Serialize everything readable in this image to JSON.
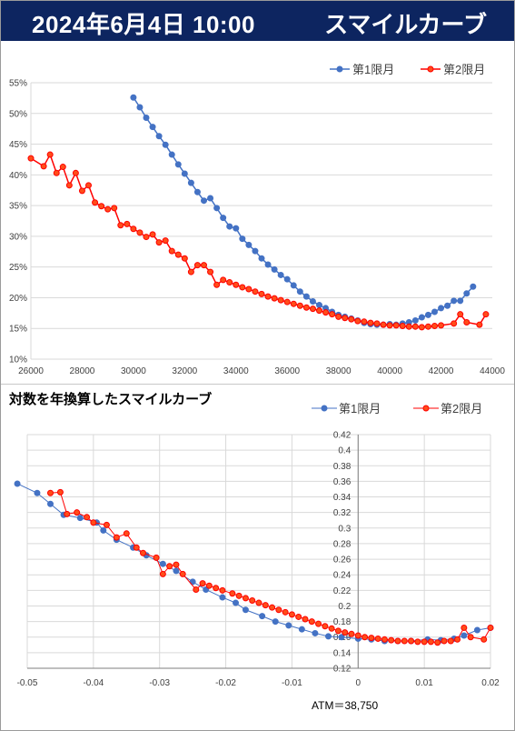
{
  "header": {
    "title": "2024年6月4日 10:00",
    "subtitle": "スマイルカーブ",
    "background": "#0d2560"
  },
  "colors": {
    "series1": "#4472c4",
    "series2": "#ff0000",
    "series2_marker_fill": "#ff4d1a",
    "grid": "#d9d9d9"
  },
  "chart_data": [
    {
      "type": "line",
      "title": "",
      "xlabel": "",
      "ylabel": "",
      "xlim": [
        26000,
        44000
      ],
      "ylim": [
        10,
        55
      ],
      "x_ticks": [
        "26000",
        "28000",
        "30000",
        "32000",
        "34000",
        "36000",
        "38000",
        "40000",
        "42000",
        "44000"
      ],
      "y_ticks": [
        "10%",
        "15%",
        "20%",
        "25%",
        "30%",
        "35%",
        "40%",
        "45%",
        "50%",
        "55%"
      ],
      "grid": "horizontal",
      "legend": "top-right",
      "series": [
        {
          "name": "第1限月",
          "color": "#4472c4",
          "points": [
            [
              30000,
              52.6
            ],
            [
              30250,
              51.0
            ],
            [
              30500,
              49.3
            ],
            [
              30750,
              47.8
            ],
            [
              31000,
              46.3
            ],
            [
              31250,
              44.9
            ],
            [
              31500,
              43.3
            ],
            [
              31750,
              41.7
            ],
            [
              32000,
              40.2
            ],
            [
              32250,
              38.7
            ],
            [
              32500,
              37.2
            ],
            [
              32750,
              35.8
            ],
            [
              33000,
              36.2
            ],
            [
              33250,
              34.6
            ],
            [
              33500,
              33.0
            ],
            [
              33750,
              31.6
            ],
            [
              34000,
              31.3
            ],
            [
              34250,
              29.6
            ],
            [
              34500,
              28.6
            ],
            [
              34750,
              27.6
            ],
            [
              35000,
              26.4
            ],
            [
              35250,
              25.4
            ],
            [
              35500,
              24.6
            ],
            [
              35750,
              23.7
            ],
            [
              36000,
              23.0
            ],
            [
              36250,
              22.0
            ],
            [
              36500,
              21.0
            ],
            [
              36750,
              20.2
            ],
            [
              37000,
              19.4
            ],
            [
              37250,
              18.8
            ],
            [
              37500,
              18.3
            ],
            [
              37750,
              17.7
            ],
            [
              38000,
              17.2
            ],
            [
              38250,
              16.9
            ],
            [
              38500,
              16.6
            ],
            [
              38750,
              16.3
            ],
            [
              39000,
              15.9
            ],
            [
              39250,
              15.7
            ],
            [
              39500,
              15.6
            ],
            [
              39750,
              15.6
            ],
            [
              40000,
              15.7
            ],
            [
              40250,
              15.6
            ],
            [
              40500,
              15.8
            ],
            [
              40750,
              16.0
            ],
            [
              41000,
              16.3
            ],
            [
              41250,
              16.8
            ],
            [
              41500,
              17.2
            ],
            [
              41750,
              17.7
            ],
            [
              42000,
              18.3
            ],
            [
              42250,
              18.7
            ],
            [
              42500,
              19.5
            ],
            [
              42750,
              19.5
            ],
            [
              43000,
              20.7
            ],
            [
              43250,
              21.8
            ]
          ]
        },
        {
          "name": "第2限月",
          "color": "#ff0000",
          "points": [
            [
              26000,
              42.7
            ],
            [
              26500,
              41.4
            ],
            [
              26750,
              43.3
            ],
            [
              27000,
              40.3
            ],
            [
              27250,
              41.3
            ],
            [
              27500,
              38.3
            ],
            [
              27750,
              40.3
            ],
            [
              28000,
              37.4
            ],
            [
              28250,
              38.3
            ],
            [
              28500,
              35.5
            ],
            [
              28750,
              34.9
            ],
            [
              29000,
              34.4
            ],
            [
              29250,
              34.6
            ],
            [
              29500,
              31.8
            ],
            [
              29750,
              32.0
            ],
            [
              30000,
              31.2
            ],
            [
              30250,
              30.6
            ],
            [
              30500,
              29.9
            ],
            [
              30750,
              30.3
            ],
            [
              31000,
              29.0
            ],
            [
              31250,
              29.3
            ],
            [
              31500,
              27.6
            ],
            [
              31750,
              27.0
            ],
            [
              32000,
              26.4
            ],
            [
              32250,
              24.2
            ],
            [
              32500,
              25.3
            ],
            [
              32750,
              25.3
            ],
            [
              33000,
              24.2
            ],
            [
              33250,
              22.1
            ],
            [
              33500,
              22.9
            ],
            [
              33750,
              22.5
            ],
            [
              34000,
              22.1
            ],
            [
              34250,
              21.7
            ],
            [
              34500,
              21.4
            ],
            [
              34750,
              21.0
            ],
            [
              35000,
              20.6
            ],
            [
              35250,
              20.2
            ],
            [
              35500,
              19.9
            ],
            [
              35750,
              19.6
            ],
            [
              36000,
              19.3
            ],
            [
              36250,
              19.0
            ],
            [
              36500,
              18.7
            ],
            [
              36750,
              18.4
            ],
            [
              37000,
              18.2
            ],
            [
              37250,
              17.9
            ],
            [
              37500,
              17.6
            ],
            [
              37750,
              17.3
            ],
            [
              38000,
              16.9
            ],
            [
              38250,
              16.7
            ],
            [
              38500,
              16.5
            ],
            [
              38750,
              16.2
            ],
            [
              39000,
              16.1
            ],
            [
              39250,
              15.9
            ],
            [
              39500,
              15.8
            ],
            [
              39750,
              15.6
            ],
            [
              40000,
              15.5
            ],
            [
              40250,
              15.5
            ],
            [
              40500,
              15.4
            ],
            [
              40750,
              15.3
            ],
            [
              41000,
              15.3
            ],
            [
              41250,
              15.2
            ],
            [
              41500,
              15.3
            ],
            [
              41750,
              15.4
            ],
            [
              42000,
              15.5
            ],
            [
              42500,
              15.8
            ],
            [
              42750,
              17.3
            ],
            [
              43000,
              16.0
            ],
            [
              43500,
              15.6
            ],
            [
              43750,
              17.3
            ]
          ]
        }
      ]
    },
    {
      "type": "line",
      "title": "対数を年換算したスマイルカーブ",
      "xlabel": "",
      "ylabel": "",
      "xlim": [
        -0.05,
        0.02
      ],
      "ylim": [
        0.12,
        0.42
      ],
      "x_ticks": [
        "-0.05",
        "-0.04",
        "-0.03",
        "-0.02",
        "-0.01",
        "0",
        "0.01",
        "0.02"
      ],
      "y_ticks": [
        "0.12",
        "0.14",
        "0.16",
        "0.18",
        "0.2",
        "0.22",
        "0.24",
        "0.26",
        "0.28",
        "0.3",
        "0.32",
        "0.34",
        "0.36",
        "0.38",
        "0.4",
        "0.42"
      ],
      "grid": "both",
      "legend": "top-right",
      "annotation": "ATM＝38,750",
      "series": [
        {
          "name": "第1限月",
          "color": "#4472c4",
          "points": [
            [
              -0.0515,
              0.357
            ],
            [
              -0.0485,
              0.345
            ],
            [
              -0.0465,
              0.331
            ],
            [
              -0.0445,
              0.317
            ],
            [
              -0.042,
              0.313
            ],
            [
              -0.0395,
              0.307
            ],
            [
              -0.0385,
              0.297
            ],
            [
              -0.0365,
              0.285
            ],
            [
              -0.034,
              0.275
            ],
            [
              -0.032,
              0.265
            ],
            [
              -0.0295,
              0.254
            ],
            [
              -0.0275,
              0.245
            ],
            [
              -0.025,
              0.231
            ],
            [
              -0.023,
              0.221
            ],
            [
              -0.0205,
              0.211
            ],
            [
              -0.0185,
              0.204
            ],
            [
              -0.017,
              0.195
            ],
            [
              -0.0145,
              0.187
            ],
            [
              -0.0125,
              0.18
            ],
            [
              -0.0105,
              0.175
            ],
            [
              -0.0085,
              0.17
            ],
            [
              -0.0065,
              0.165
            ],
            [
              -0.0045,
              0.161
            ],
            [
              -0.0025,
              0.16
            ],
            [
              0.0,
              0.158
            ],
            [
              0.002,
              0.157
            ],
            [
              0.004,
              0.155
            ],
            [
              0.006,
              0.155
            ],
            [
              0.008,
              0.155
            ],
            [
              0.0105,
              0.157
            ],
            [
              0.0125,
              0.156
            ],
            [
              0.0145,
              0.158
            ],
            [
              0.016,
              0.162
            ],
            [
              0.018,
              0.169
            ],
            [
              0.02,
              0.172
            ]
          ]
        },
        {
          "name": "第2限月",
          "color": "#ff0000",
          "points": [
            [
              -0.0465,
              0.345
            ],
            [
              -0.045,
              0.346
            ],
            [
              -0.044,
              0.318
            ],
            [
              -0.0425,
              0.32
            ],
            [
              -0.041,
              0.314
            ],
            [
              -0.04,
              0.307
            ],
            [
              -0.038,
              0.304
            ],
            [
              -0.0365,
              0.288
            ],
            [
              -0.035,
              0.293
            ],
            [
              -0.0335,
              0.275
            ],
            [
              -0.0325,
              0.268
            ],
            [
              -0.0305,
              0.262
            ],
            [
              -0.0295,
              0.241
            ],
            [
              -0.0285,
              0.251
            ],
            [
              -0.0275,
              0.253
            ],
            [
              -0.0265,
              0.241
            ],
            [
              -0.0245,
              0.221
            ],
            [
              -0.0235,
              0.229
            ],
            [
              -0.0225,
              0.226
            ],
            [
              -0.0215,
              0.223
            ],
            [
              -0.0205,
              0.22
            ],
            [
              -0.019,
              0.216
            ],
            [
              -0.018,
              0.213
            ],
            [
              -0.017,
              0.21
            ],
            [
              -0.016,
              0.207
            ],
            [
              -0.015,
              0.204
            ],
            [
              -0.014,
              0.201
            ],
            [
              -0.013,
              0.198
            ],
            [
              -0.012,
              0.195
            ],
            [
              -0.011,
              0.192
            ],
            [
              -0.01,
              0.189
            ],
            [
              -0.009,
              0.186
            ],
            [
              -0.008,
              0.183
            ],
            [
              -0.007,
              0.18
            ],
            [
              -0.006,
              0.177
            ],
            [
              -0.005,
              0.174
            ],
            [
              -0.004,
              0.171
            ],
            [
              -0.003,
              0.168
            ],
            [
              -0.002,
              0.166
            ],
            [
              -0.001,
              0.164
            ],
            [
              0.0,
              0.162
            ],
            [
              0.001,
              0.16
            ],
            [
              0.002,
              0.159
            ],
            [
              0.003,
              0.158
            ],
            [
              0.004,
              0.157
            ],
            [
              0.005,
              0.156
            ],
            [
              0.006,
              0.155
            ],
            [
              0.007,
              0.155
            ],
            [
              0.008,
              0.155
            ],
            [
              0.009,
              0.154
            ],
            [
              0.01,
              0.154
            ],
            [
              0.011,
              0.154
            ],
            [
              0.012,
              0.153
            ],
            [
              0.013,
              0.155
            ],
            [
              0.014,
              0.155
            ],
            [
              0.015,
              0.157
            ],
            [
              0.016,
              0.172
            ],
            [
              0.017,
              0.16
            ],
            [
              0.019,
              0.157
            ],
            [
              0.02,
              0.172
            ]
          ]
        }
      ]
    }
  ]
}
